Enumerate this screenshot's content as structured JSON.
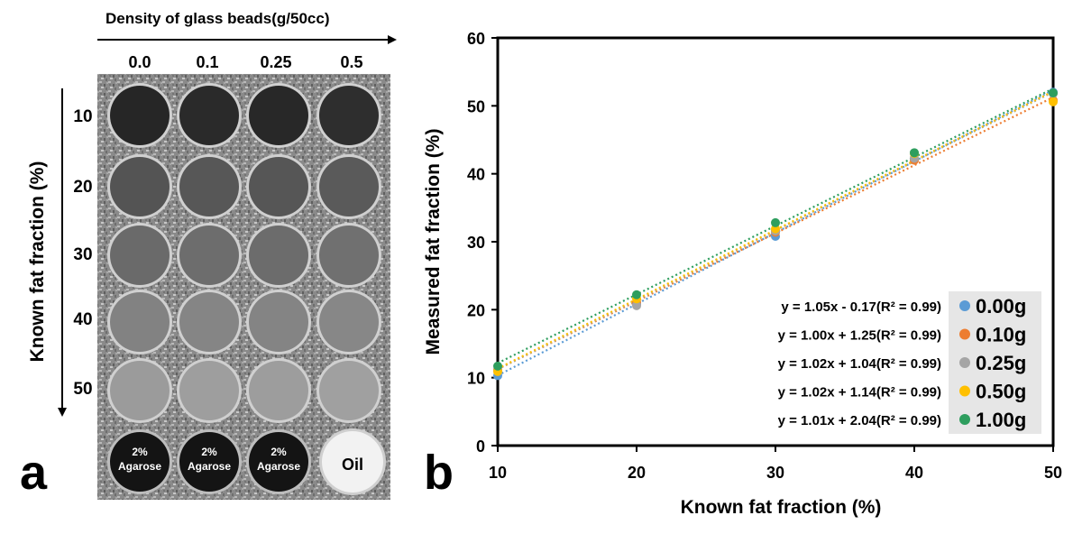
{
  "panel_a": {
    "label": "a",
    "top_title": "Density of glass beads(g/50cc)",
    "side_title": "Known fat fraction (%)",
    "columns": [
      "0.0",
      "0.1",
      "0.25",
      "0.5"
    ],
    "rows": [
      "10",
      "20",
      "30",
      "40",
      "50"
    ],
    "bottom_vials": [
      {
        "line1": "2%",
        "line2": "Agarose"
      },
      {
        "line1": "2%",
        "line2": "Agarose"
      },
      {
        "line1": "2%",
        "line2": "Agarose"
      },
      {
        "line1": "Oil",
        "line2": ""
      }
    ],
    "row_gray_levels": [
      [
        "#262626",
        "#2a2a2a",
        "#282828",
        "#2e2e2e"
      ],
      [
        "#545454",
        "#575757",
        "#565656",
        "#5a5a5a"
      ],
      [
        "#6a6a6a",
        "#6d6d6d",
        "#6c6c6c",
        "#707070"
      ],
      [
        "#828282",
        "#858585",
        "#848484",
        "#878787"
      ],
      [
        "#9b9b9b",
        "#9e9e9e",
        "#9d9d9d",
        "#a0a0a0"
      ]
    ],
    "colors": {
      "agarose": "#141414",
      "oil": "#f2f2f2"
    }
  },
  "chart_data": {
    "type": "scatter",
    "panel_label": "b",
    "title": "",
    "xlabel": "Known fat fraction (%)",
    "ylabel": "Measured fat fraction (%)",
    "xlim": [
      10,
      50
    ],
    "ylim": [
      0,
      60
    ],
    "xticks": [
      10,
      20,
      30,
      40,
      50
    ],
    "yticks": [
      0,
      10,
      20,
      30,
      40,
      50,
      60
    ],
    "grid": false,
    "legend_placement": "bottom-right",
    "trendlines": "dotted linear fit per series",
    "x": [
      10,
      20,
      30,
      40,
      50
    ],
    "series": [
      {
        "name": "0.00g",
        "color": "#5b9bd5",
        "values": [
          10.3,
          20.8,
          30.8,
          42.1,
          52.0
        ],
        "equation": "y = 1.05x - 0.17(R² = 0.99)",
        "slope": 1.05,
        "intercept": -0.17
      },
      {
        "name": "0.10g",
        "color": "#ed7d31",
        "values": [
          11.2,
          21.1,
          31.4,
          42.0,
          50.8
        ],
        "equation": "y = 1.00x + 1.25(R² = 0.99)",
        "slope": 1.0,
        "intercept": 1.25
      },
      {
        "name": "0.25g",
        "color": "#a5a5a5",
        "values": [
          11.0,
          20.6,
          31.6,
          42.3,
          51.8
        ],
        "equation": "y = 1.02x + 1.04(R² = 0.99)",
        "slope": 1.02,
        "intercept": 1.04
      },
      {
        "name": "0.50g",
        "color": "#ffc000",
        "values": [
          10.9,
          21.6,
          31.9,
          43.0,
          50.6
        ],
        "equation": "y = 1.02x + 1.14(R² = 0.99)",
        "slope": 1.02,
        "intercept": 1.14
      },
      {
        "name": "1.00g",
        "color": "#2e9e5e",
        "values": [
          11.7,
          22.2,
          32.8,
          43.1,
          51.9
        ],
        "equation": "y = 1.01x + 2.04(R² = 0.99)",
        "slope": 1.01,
        "intercept": 2.04
      }
    ]
  }
}
